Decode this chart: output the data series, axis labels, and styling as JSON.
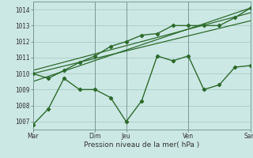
{
  "xlabel": "Pression niveau de la mer( hPa )",
  "bg_color": "#cce8e4",
  "grid_color": "#aaccc8",
  "line_color": "#2d6a2d",
  "ylim": [
    1006.5,
    1014.5
  ],
  "ytick_positions": [
    1007,
    1008,
    1009,
    1010,
    1011,
    1012,
    1013,
    1014
  ],
  "day_positions": [
    0,
    48,
    72,
    120,
    168
  ],
  "day_labels": [
    "Mar",
    "Dim",
    "Jeu",
    "Ven",
    "Sam"
  ],
  "vline_positions": [
    0,
    48,
    72,
    120,
    168
  ],
  "xlim": [
    0,
    168
  ],
  "series1_x": [
    0,
    12,
    24,
    36,
    48,
    60,
    72,
    84,
    96,
    108,
    120,
    132,
    144,
    156,
    168
  ],
  "series1_y": [
    1006.8,
    1007.8,
    1009.7,
    1009.0,
    1009.0,
    1008.5,
    1007.0,
    1008.3,
    1011.1,
    1010.8,
    1011.1,
    1009.0,
    1009.3,
    1010.4,
    1010.5
  ],
  "series2_x": [
    0,
    12,
    24,
    36,
    48,
    60,
    72,
    84,
    96,
    108,
    120,
    132,
    144,
    156,
    168
  ],
  "series2_y": [
    1010.0,
    1009.7,
    1010.2,
    1010.7,
    1011.1,
    1011.7,
    1012.0,
    1012.4,
    1012.5,
    1013.0,
    1013.0,
    1013.0,
    1013.0,
    1013.5,
    1014.1
  ],
  "trend1_x": [
    0,
    168
  ],
  "trend1_y": [
    1010.0,
    1013.3
  ],
  "trend2_x": [
    0,
    168
  ],
  "trend2_y": [
    1009.5,
    1014.1
  ],
  "trend3_x": [
    0,
    168
  ],
  "trend3_y": [
    1010.2,
    1013.8
  ]
}
